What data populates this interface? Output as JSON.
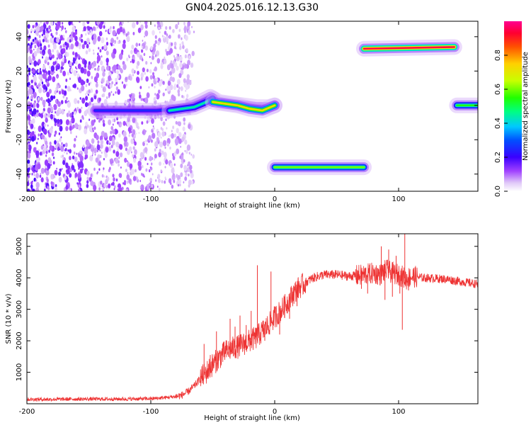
{
  "figure_title": "GN04.2025.016.12.13.G30",
  "chart_data": [
    {
      "type": "heatmap",
      "xlabel": "Height of straight line (km)",
      "ylabel": "Frequency (Hz)",
      "xlim": [
        -200,
        164
      ],
      "ylim": [
        -50,
        49
      ],
      "x_ticks": [
        -200,
        -100,
        0,
        100
      ],
      "y_ticks": [
        -40,
        -20,
        0,
        20,
        40
      ],
      "colorbar": {
        "label": "Normalized spectral amplitude",
        "range": [
          0,
          1
        ],
        "ticks": [
          "0.0",
          "0.2",
          "0.4",
          "0.6",
          "0.8"
        ]
      },
      "noise_region": {
        "x_range": [
          -200,
          -75
        ],
        "y_range": [
          -50,
          49
        ]
      },
      "traces": [
        {
          "x": [
            -145,
            -120,
            -95,
            -80,
            -70,
            -60,
            -52,
            -45,
            -35,
            -25,
            -15,
            -5,
            0
          ],
          "y": [
            -3,
            -3,
            -3,
            -2,
            -1,
            2,
            5,
            2,
            1,
            0,
            -1,
            -1,
            0
          ],
          "amplitude": 0.25
        },
        {
          "x": [
            -85,
            -75,
            -65,
            -55,
            -50
          ],
          "y": [
            -3,
            -2,
            -1,
            2,
            4
          ],
          "amplitude": 0.45
        },
        {
          "x": [
            -50,
            -40,
            -30,
            -20,
            -10,
            0
          ],
          "y": [
            2,
            1,
            0,
            -2,
            -3,
            0
          ],
          "amplitude": 0.75
        },
        {
          "x": [
            0,
            72
          ],
          "y": [
            -36,
            -36
          ],
          "amplitude": 0.6
        },
        {
          "x": [
            72,
            145
          ],
          "y": [
            33,
            34
          ],
          "amplitude": 0.95
        },
        {
          "x": [
            147,
            164
          ],
          "y": [
            0,
            0
          ],
          "amplitude": 0.55
        }
      ]
    },
    {
      "type": "line",
      "xlabel": "Height of straight line (km)",
      "ylabel": "SNR (10 * v/v)",
      "xlim": [
        -200,
        164
      ],
      "ylim": [
        0,
        5400
      ],
      "x_ticks": [
        -200,
        -100,
        0,
        100
      ],
      "y_ticks": [
        1000,
        2000,
        3000,
        4000,
        5000
      ],
      "color": "#ee3333",
      "series": [
        {
          "x": [
            -200,
            -180,
            -160,
            -140,
            -120,
            -100,
            -90,
            -80,
            -75,
            -70,
            -65,
            -60,
            -55,
            -50,
            -45,
            -40,
            -35,
            -30,
            -25,
            -20,
            -15,
            -10,
            -5,
            0,
            5,
            10,
            15,
            20,
            25,
            30,
            35,
            40,
            50,
            60,
            70,
            80,
            85,
            90,
            95,
            100,
            103,
            106,
            110,
            120,
            130,
            140,
            150,
            164
          ],
          "y": [
            140,
            140,
            150,
            150,
            150,
            160,
            190,
            230,
            270,
            380,
            560,
            800,
            1000,
            1250,
            1450,
            1650,
            1750,
            1800,
            1900,
            2000,
            2100,
            2300,
            2500,
            2750,
            2950,
            3200,
            3500,
            3700,
            3850,
            3980,
            4050,
            4100,
            4100,
            4050,
            4080,
            4150,
            4100,
            4250,
            4150,
            4100,
            4050,
            3950,
            4050,
            4000,
            3980,
            3950,
            3880,
            3800
          ],
          "spikes": [
            {
              "x": -57,
              "y": 1900
            },
            {
              "x": -52,
              "y": 1550
            },
            {
              "x": -47,
              "y": 2300
            },
            {
              "x": -42,
              "y": 1900
            },
            {
              "x": -36,
              "y": 2700
            },
            {
              "x": -32,
              "y": 2450
            },
            {
              "x": -28,
              "y": 2800
            },
            {
              "x": -23,
              "y": 2500
            },
            {
              "x": -19,
              "y": 2950
            },
            {
              "x": -14,
              "y": 4400
            },
            {
              "x": -8,
              "y": 2000
            },
            {
              "x": -3,
              "y": 4200
            },
            {
              "x": 4,
              "y": 2200
            },
            {
              "x": 8,
              "y": 3400
            },
            {
              "x": 12,
              "y": 2700
            },
            {
              "x": 18,
              "y": 3100
            },
            {
              "x": 70,
              "y": 3650
            },
            {
              "x": 75,
              "y": 3500
            },
            {
              "x": 82,
              "y": 4350
            },
            {
              "x": 86,
              "y": 5000
            },
            {
              "x": 89,
              "y": 3300
            },
            {
              "x": 92,
              "y": 4900
            },
            {
              "x": 95,
              "y": 3400
            },
            {
              "x": 98,
              "y": 4700
            },
            {
              "x": 101,
              "y": 3500
            },
            {
              "x": 103,
              "y": 2350
            },
            {
              "x": 105,
              "y": 5400
            },
            {
              "x": 108,
              "y": 3600
            },
            {
              "x": 112,
              "y": 4300
            }
          ]
        }
      ]
    }
  ]
}
